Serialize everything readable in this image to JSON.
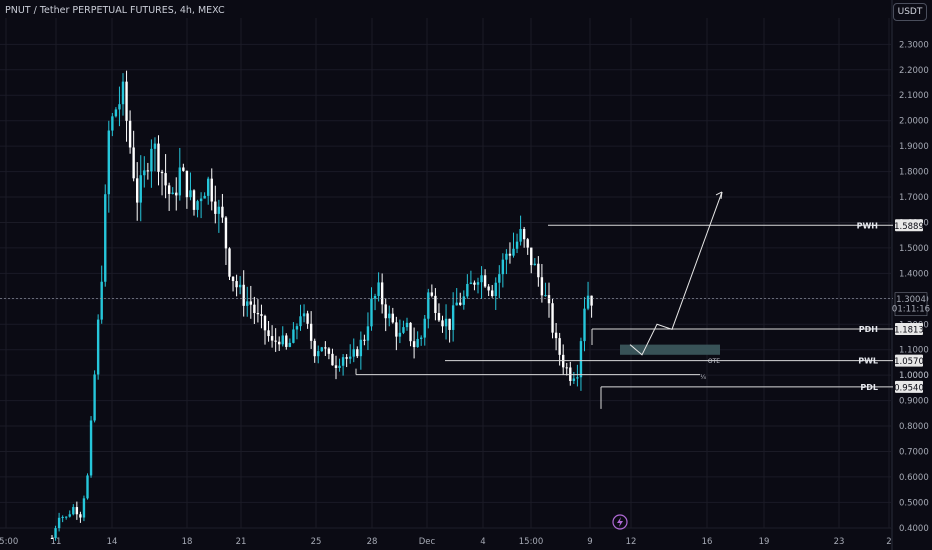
{
  "title": "PNUT / Tether PERPETUAL FUTURES, 4h, MEXC",
  "currency_button": "USDT",
  "colors": {
    "background": "#0b0b14",
    "candle_up": "#26c6da",
    "candle_down": "#ffffff",
    "level_line": "#d9d9d9",
    "zone_fill": "#3d5a5e",
    "grid": "#1b1b26"
  },
  "chart_data": {
    "type": "candlestick",
    "timeframe": "4h",
    "symbol": "PNUT / Tether PERPETUAL FUTURES",
    "exchange": "MEXC",
    "x_ticks": [
      "15:00",
      "11",
      "14",
      "18",
      "21",
      "25",
      "28",
      "Dec",
      "4",
      "15:00",
      "9",
      "12",
      "16",
      "19",
      "23",
      "2"
    ],
    "y_ticks": [
      "2.3000",
      "2.2000",
      "2.1000",
      "2.0000",
      "1.9000",
      "1.8000",
      "1.7000",
      "1.6000",
      "1.5000",
      "1.4000",
      "1.3000",
      "1.2000",
      "1.1000",
      "1.0000",
      "0.9000",
      "0.8000",
      "0.7000",
      "0.6000",
      "0.5000",
      "0.4000"
    ],
    "ylim": [
      0.36,
      2.38
    ],
    "price_path": [
      [
        0,
        0.36
      ],
      [
        2,
        0.45
      ],
      [
        4,
        0.44
      ],
      [
        6,
        0.48
      ],
      [
        8,
        0.45
      ],
      [
        10,
        0.6
      ],
      [
        12,
        1.0
      ],
      [
        14,
        1.4
      ],
      [
        16,
        1.95
      ],
      [
        18,
        2.05
      ],
      [
        20,
        2.1
      ],
      [
        22,
        1.9
      ],
      [
        24,
        1.7
      ],
      [
        26,
        1.78
      ],
      [
        28,
        1.92
      ],
      [
        30,
        1.85
      ],
      [
        32,
        1.75
      ],
      [
        34,
        1.68
      ],
      [
        36,
        1.8
      ],
      [
        38,
        1.74
      ],
      [
        40,
        1.65
      ],
      [
        42,
        1.72
      ],
      [
        44,
        1.76
      ],
      [
        46,
        1.68
      ],
      [
        48,
        1.6
      ],
      [
        50,
        1.42
      ],
      [
        52,
        1.35
      ],
      [
        54,
        1.3
      ],
      [
        56,
        1.28
      ],
      [
        58,
        1.22
      ],
      [
        60,
        1.18
      ],
      [
        62,
        1.12
      ],
      [
        64,
        1.15
      ],
      [
        66,
        1.1
      ],
      [
        68,
        1.15
      ],
      [
        70,
        1.25
      ],
      [
        72,
        1.18
      ],
      [
        74,
        1.1
      ],
      [
        76,
        1.12
      ],
      [
        78,
        1.06
      ],
      [
        80,
        1.05
      ],
      [
        82,
        1.08
      ],
      [
        84,
        1.05
      ],
      [
        86,
        1.1
      ],
      [
        88,
        1.15
      ],
      [
        90,
        1.28
      ],
      [
        92,
        1.33
      ],
      [
        94,
        1.25
      ],
      [
        96,
        1.2
      ],
      [
        98,
        1.15
      ],
      [
        100,
        1.18
      ],
      [
        102,
        1.12
      ],
      [
        104,
        1.15
      ],
      [
        106,
        1.32
      ],
      [
        108,
        1.28
      ],
      [
        110,
        1.22
      ],
      [
        112,
        1.2
      ],
      [
        114,
        1.28
      ],
      [
        116,
        1.3
      ],
      [
        118,
        1.35
      ],
      [
        120,
        1.4
      ],
      [
        122,
        1.38
      ],
      [
        124,
        1.34
      ],
      [
        126,
        1.4
      ],
      [
        128,
        1.48
      ],
      [
        130,
        1.5
      ],
      [
        132,
        1.55
      ],
      [
        134,
        1.48
      ],
      [
        136,
        1.42
      ],
      [
        138,
        1.35
      ],
      [
        140,
        1.25
      ],
      [
        142,
        1.12
      ],
      [
        144,
        1.05
      ],
      [
        146,
        1.0
      ],
      [
        148,
        1.02
      ],
      [
        150,
        1.28
      ],
      [
        151,
        1.32
      ],
      [
        152,
        1.3
      ]
    ],
    "current_price": "1.3004",
    "countdown": "01:11:16",
    "levels": [
      {
        "label": "PWH",
        "value": "1.5889",
        "price": 1.5889
      },
      {
        "label": "PDH",
        "value": "1.1813",
        "price": 1.1813
      },
      {
        "label": "PWL",
        "value": "1.0570",
        "price": 1.057
      },
      {
        "label": "PDL",
        "value": "0.9540",
        "price": 0.954
      }
    ],
    "extra_price_label": "1.0000",
    "zone_label": "OTE",
    "zone_range": [
      1.08,
      1.12
    ],
    "projection_path": [
      [
        1.12,
        0
      ],
      [
        1.08,
        1
      ],
      [
        1.2,
        2
      ],
      [
        1.18,
        3
      ],
      [
        1.72,
        5
      ]
    ],
    "marker_label": "¼"
  }
}
